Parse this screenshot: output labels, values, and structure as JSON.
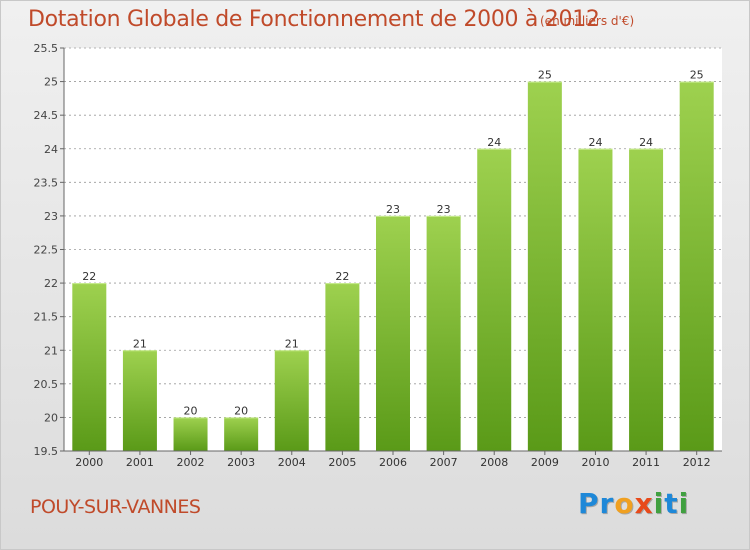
{
  "header": {
    "title": "Dotation Globale de Fonctionnement de 2000 à 2012",
    "subtitle": "(en milliers d'€)"
  },
  "footer": {
    "commune": "POUY-SUR-VANNES",
    "logo_letters": [
      {
        "char": "P",
        "color": "#1e88d8"
      },
      {
        "char": "r",
        "color": "#1e88d8"
      },
      {
        "char": "o",
        "color": "#f0a020"
      },
      {
        "char": "x",
        "color": "#e84a1a"
      },
      {
        "char": "i",
        "color": "#40a040"
      },
      {
        "char": "t",
        "color": "#1e88d8"
      },
      {
        "char": "i",
        "color": "#40a040"
      }
    ]
  },
  "colors": {
    "accent": "#c04a2a",
    "bar_top": "#9ed14f",
    "bar_bottom": "#5a9a18",
    "grid": "#9a9a9a",
    "plot_bg": "#ffffff"
  },
  "chart_data": {
    "type": "bar",
    "categories": [
      "2000",
      "2001",
      "2002",
      "2003",
      "2004",
      "2005",
      "2006",
      "2007",
      "2008",
      "2009",
      "2010",
      "2011",
      "2012"
    ],
    "values": [
      22,
      21,
      20,
      20,
      21,
      22,
      23,
      23,
      24,
      25,
      24,
      24,
      25
    ],
    "data_labels": [
      "22",
      "21",
      "20",
      "20",
      "21",
      "22",
      "23",
      "23",
      "24",
      "25",
      "24",
      "24",
      "25"
    ],
    "yticks": [
      "19.5",
      "20",
      "20.5",
      "21",
      "21.5",
      "22",
      "22.5",
      "23",
      "23.5",
      "24",
      "24.5",
      "25",
      "25.5"
    ],
    "ylim": [
      19.5,
      25.5
    ],
    "grid": true,
    "title": "Dotation Globale de Fonctionnement de 2000 à 2012",
    "subtitle": "(en milliers d'€)"
  }
}
